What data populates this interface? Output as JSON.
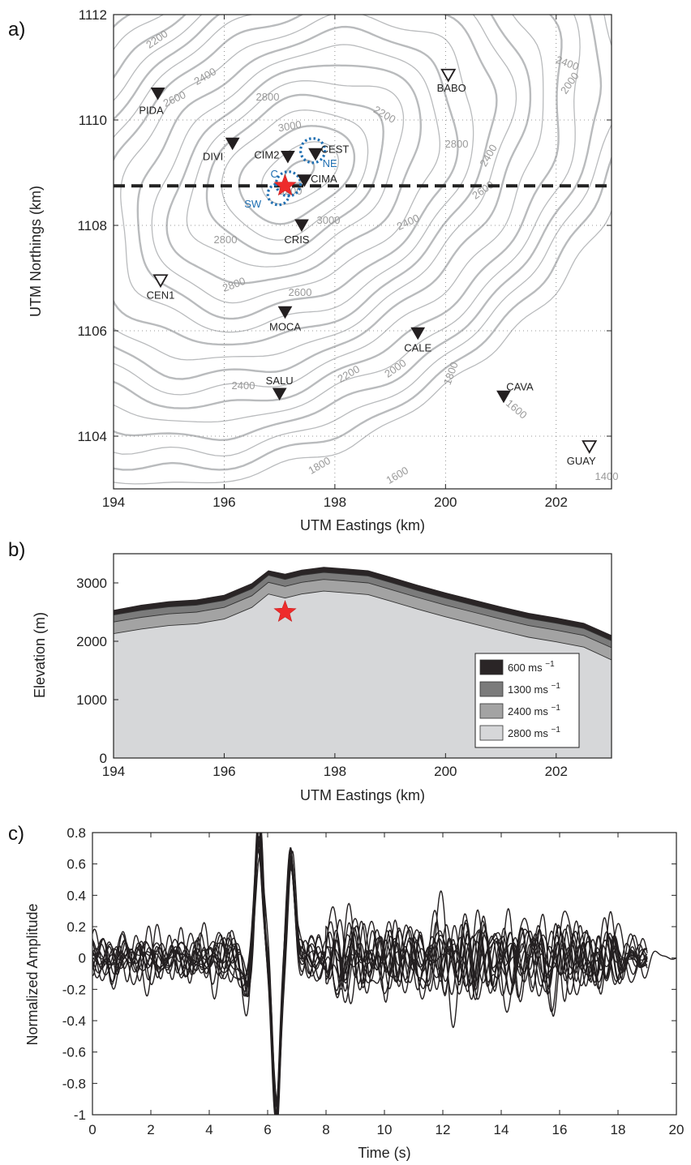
{
  "panel_labels": [
    "a)",
    "b)",
    "c)"
  ],
  "chart_data": [
    {
      "type": "scatter",
      "panel": "a)",
      "xlabel": "UTM Eastings (km)",
      "ylabel": "UTM Northings (km)",
      "xlim": [
        194,
        203
      ],
      "ylim": [
        1103,
        1112
      ],
      "xticks": [
        "194",
        "196",
        "198",
        "200",
        "202"
      ],
      "yticks": [
        "1104",
        "1106",
        "1108",
        "1110",
        "1112"
      ],
      "grid": true,
      "section_line_northing": 1108.75,
      "stations": [
        {
          "name": "PIDA",
          "x": 194.8,
          "y": 1110.5,
          "filled": true
        },
        {
          "name": "BABO",
          "x": 200.05,
          "y": 1110.85,
          "filled": false
        },
        {
          "name": "DIVI",
          "x": 196.15,
          "y": 1109.55,
          "filled": true
        },
        {
          "name": "CIM2",
          "x": 197.15,
          "y": 1109.3,
          "filled": true
        },
        {
          "name": "CEST",
          "x": 197.65,
          "y": 1109.35,
          "filled": true
        },
        {
          "name": "CIMA",
          "x": 197.45,
          "y": 1108.85,
          "filled": true
        },
        {
          "name": "CRIS",
          "x": 197.4,
          "y": 1108.0,
          "filled": true
        },
        {
          "name": "CEN1",
          "x": 194.85,
          "y": 1106.95,
          "filled": false
        },
        {
          "name": "MOCA",
          "x": 197.1,
          "y": 1106.35,
          "filled": true
        },
        {
          "name": "CALE",
          "x": 199.5,
          "y": 1105.95,
          "filled": true
        },
        {
          "name": "SALU",
          "x": 197.0,
          "y": 1104.8,
          "filled": true
        },
        {
          "name": "CAVA",
          "x": 201.05,
          "y": 1104.75,
          "filled": true
        },
        {
          "name": "GUAY",
          "x": 202.6,
          "y": 1103.8,
          "filled": false
        }
      ],
      "source_regions": [
        {
          "label": "C",
          "x": 197.1,
          "y": 1108.85
        },
        {
          "label": "SW",
          "x": 196.95,
          "y": 1108.65
        },
        {
          "label": "NE",
          "x": 197.6,
          "y": 1109.45
        }
      ],
      "source_star": {
        "x": 197.1,
        "y": 1108.75
      },
      "contour_labels": [
        "2200",
        "2400",
        "2600",
        "2800",
        "3000",
        "3200",
        "2000",
        "1800",
        "1600",
        "1400"
      ]
    },
    {
      "type": "area",
      "panel": "b)",
      "xlabel": "UTM Eastings (km)",
      "ylabel": "Elevation (m)",
      "xlim": [
        194,
        203
      ],
      "ylim": [
        0,
        3500
      ],
      "xticks": [
        "194",
        "196",
        "198",
        "200",
        "202"
      ],
      "yticks": [
        "0",
        "1000",
        "2000",
        "3000"
      ],
      "x": [
        194,
        194.5,
        195,
        195.5,
        196,
        196.5,
        196.8,
        197.1,
        197.4,
        197.8,
        198.2,
        198.6,
        199,
        199.5,
        200,
        200.5,
        201,
        201.5,
        202,
        202.5,
        203
      ],
      "series": [
        {
          "name": "600 ms",
          "values": [
            2530,
            2620,
            2680,
            2710,
            2790,
            2990,
            3210,
            3150,
            3220,
            3270,
            3240,
            3210,
            3100,
            2960,
            2830,
            2710,
            2590,
            2480,
            2400,
            2310,
            2100
          ]
        },
        {
          "name": "1300 ms",
          "values": [
            2450,
            2530,
            2590,
            2620,
            2700,
            2900,
            3130,
            3060,
            3130,
            3180,
            3150,
            3120,
            3010,
            2870,
            2740,
            2620,
            2500,
            2390,
            2310,
            2220,
            2010
          ]
        },
        {
          "name": "2400 ms",
          "values": [
            2330,
            2410,
            2470,
            2500,
            2580,
            2780,
            3010,
            2940,
            3010,
            3060,
            3030,
            3000,
            2890,
            2750,
            2620,
            2500,
            2380,
            2270,
            2190,
            2100,
            1890
          ]
        },
        {
          "name": "2800 ms",
          "values": [
            2130,
            2210,
            2270,
            2300,
            2380,
            2580,
            2810,
            2740,
            2810,
            2860,
            2830,
            2800,
            2690,
            2550,
            2420,
            2300,
            2180,
            2070,
            1990,
            1900,
            1680
          ]
        }
      ],
      "legend": [
        {
          "label": "600 ms",
          "exp": "−1",
          "color": "#2a2526"
        },
        {
          "label": "1300 ms",
          "exp": "−1",
          "color": "#7b7b7b"
        },
        {
          "label": "2400 ms",
          "exp": "−1",
          "color": "#a3a3a3"
        },
        {
          "label": "2800 ms",
          "exp": "−1",
          "color": "#d6d7d9"
        }
      ],
      "source_star": {
        "x": 197.1,
        "y": 2500
      },
      "legend_position": "lower-right"
    },
    {
      "type": "line",
      "panel": "c)",
      "xlabel": "Time (s)",
      "ylabel": "Normalized Amplitude",
      "xlim": [
        0,
        20
      ],
      "ylim": [
        -1,
        0.8
      ],
      "xticks": [
        "0",
        "2",
        "4",
        "6",
        "8",
        "10",
        "12",
        "14",
        "16",
        "18",
        "20"
      ],
      "yticks": [
        "0.8",
        "0.6",
        "0.4",
        "0.2",
        "0",
        "-0.2",
        "-0.4",
        "-0.6",
        "-0.8",
        "-1"
      ],
      "trace_count": 13,
      "peaks": [
        {
          "t": 5.7,
          "amplitude": 0.76
        },
        {
          "t": 6.3,
          "amplitude": -1.0
        },
        {
          "t": 6.8,
          "amplitude": 0.64
        },
        {
          "t": 5.3,
          "amplitude": -0.18
        }
      ],
      "trace_end_time": 19.0
    }
  ]
}
